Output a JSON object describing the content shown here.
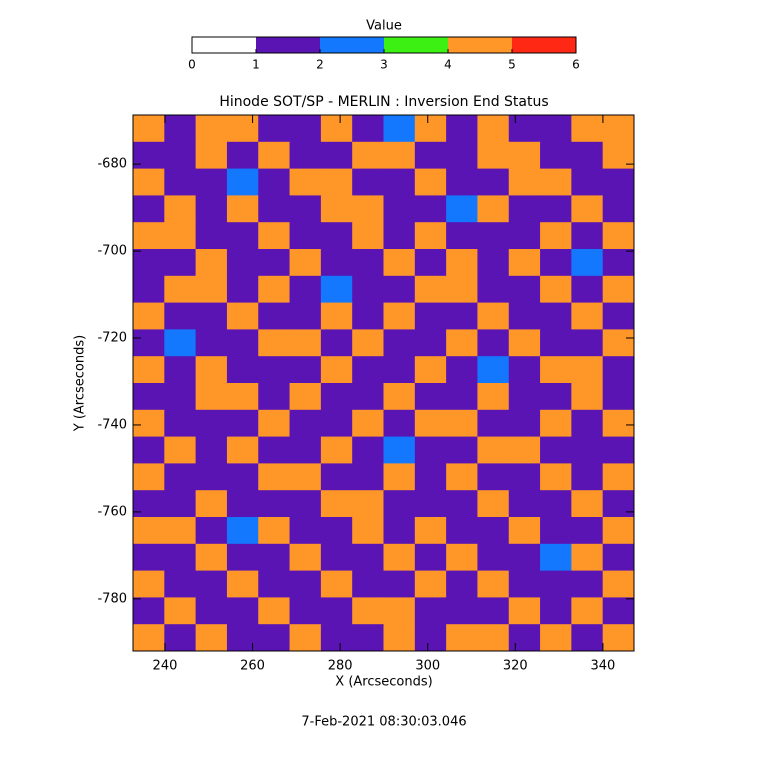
{
  "chart_data": {
    "type": "heatmap",
    "title": "Hinode SOT/SP - MERLIN : Inversion End Status",
    "x_label": "X (Arcseconds)",
    "y_label": "Y (Arcseconds)",
    "footer": "7-Feb-2021 08:30:03.046",
    "xlim": [
      232.7,
      347.1
    ],
    "ylim": [
      -792,
      -668.7
    ],
    "xticks": [
      240,
      260,
      280,
      300,
      320,
      340
    ],
    "yticks": [
      -680,
      -700,
      -720,
      -740,
      -760,
      -780
    ],
    "colorbar": {
      "title": "Value",
      "ticks": [
        0,
        1,
        2,
        3,
        4,
        5,
        6
      ],
      "colors": [
        "#ffffff",
        "#5a14b4",
        "#1478ff",
        "#3cf014",
        "#ff9628",
        "#ff2814"
      ]
    },
    "z": [
      [
        4,
        1,
        4,
        4,
        1,
        1,
        4,
        1,
        2,
        4,
        1,
        4,
        1,
        1,
        4,
        4
      ],
      [
        1,
        1,
        4,
        1,
        4,
        1,
        1,
        4,
        4,
        1,
        1,
        4,
        4,
        1,
        1,
        4
      ],
      [
        4,
        1,
        1,
        2,
        1,
        4,
        4,
        1,
        1,
        4,
        1,
        1,
        4,
        4,
        1,
        1
      ],
      [
        1,
        4,
        1,
        4,
        1,
        1,
        4,
        4,
        1,
        1,
        2,
        4,
        1,
        1,
        4,
        1
      ],
      [
        4,
        4,
        1,
        1,
        4,
        1,
        1,
        4,
        1,
        4,
        1,
        1,
        1,
        4,
        1,
        4
      ],
      [
        1,
        1,
        4,
        1,
        1,
        4,
        1,
        1,
        4,
        1,
        4,
        1,
        4,
        1,
        2,
        1
      ],
      [
        1,
        4,
        4,
        1,
        4,
        1,
        2,
        1,
        1,
        4,
        4,
        1,
        1,
        4,
        1,
        4
      ],
      [
        4,
        1,
        1,
        4,
        1,
        1,
        4,
        1,
        4,
        1,
        1,
        4,
        1,
        1,
        4,
        1
      ],
      [
        1,
        2,
        1,
        1,
        4,
        4,
        1,
        4,
        1,
        1,
        4,
        1,
        4,
        1,
        1,
        4
      ],
      [
        4,
        1,
        4,
        1,
        1,
        1,
        4,
        1,
        1,
        4,
        1,
        2,
        1,
        4,
        4,
        1
      ],
      [
        1,
        1,
        4,
        4,
        1,
        4,
        1,
        1,
        4,
        1,
        1,
        4,
        1,
        1,
        4,
        1
      ],
      [
        4,
        1,
        1,
        1,
        4,
        1,
        1,
        4,
        1,
        4,
        4,
        1,
        1,
        4,
        1,
        4
      ],
      [
        1,
        4,
        1,
        4,
        1,
        1,
        4,
        1,
        2,
        1,
        1,
        4,
        4,
        1,
        1,
        1
      ],
      [
        4,
        1,
        1,
        1,
        4,
        4,
        1,
        1,
        4,
        1,
        4,
        1,
        1,
        4,
        1,
        4
      ],
      [
        1,
        1,
        4,
        1,
        1,
        1,
        4,
        4,
        1,
        1,
        1,
        4,
        1,
        1,
        4,
        1
      ],
      [
        4,
        4,
        1,
        2,
        4,
        1,
        1,
        4,
        1,
        4,
        1,
        1,
        4,
        1,
        1,
        4
      ],
      [
        1,
        1,
        4,
        1,
        1,
        4,
        1,
        1,
        4,
        1,
        4,
        1,
        1,
        2,
        4,
        1
      ],
      [
        4,
        1,
        1,
        4,
        1,
        1,
        4,
        1,
        1,
        4,
        1,
        4,
        1,
        1,
        1,
        4
      ],
      [
        1,
        4,
        1,
        1,
        4,
        1,
        1,
        4,
        4,
        1,
        1,
        1,
        4,
        1,
        4,
        1
      ],
      [
        4,
        1,
        4,
        1,
        1,
        4,
        1,
        1,
        4,
        1,
        4,
        4,
        1,
        4,
        1,
        4
      ]
    ]
  }
}
